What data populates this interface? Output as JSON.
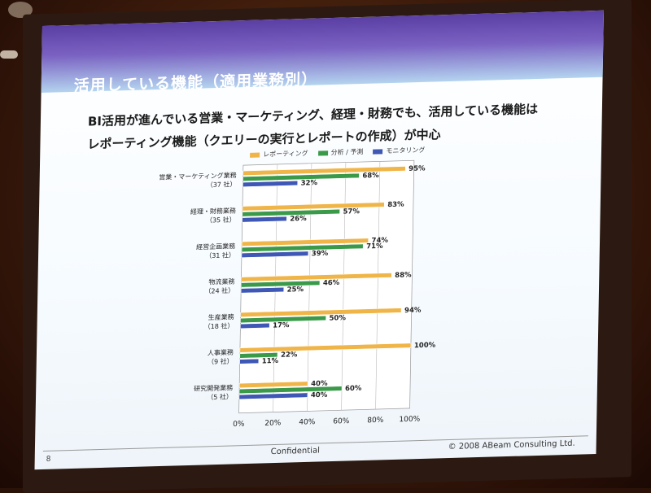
{
  "slide": {
    "title": "活用している機能（適用業務別）",
    "headline_line1": "BI活用が進んでいる営業・マーケティング、経理・財務でも、活用している機能は",
    "headline_line2": "レポーティング機能（クエリーの実行とレポートの作成）が中心",
    "page_number": "8",
    "footer_center": "Confidential",
    "footer_right": "© 2008 ABeam Consulting Ltd."
  },
  "chart_data": {
    "type": "bar",
    "orientation": "horizontal",
    "categories": [
      {
        "name": "営業・マーケティング業務",
        "count": "（37 社）"
      },
      {
        "name": "経理・財務業務",
        "count": "（35 社）"
      },
      {
        "name": "経営企画業務",
        "count": "（31 社）"
      },
      {
        "name": "物流業務",
        "count": "（24 社）"
      },
      {
        "name": "生産業務",
        "count": "（18 社）"
      },
      {
        "name": "人事業務",
        "count": "（9 社）"
      },
      {
        "name": "研究開発業務",
        "count": "（5 社）"
      }
    ],
    "series": [
      {
        "name": "レポーティング",
        "color": "#f0b548",
        "values": [
          95,
          83,
          74,
          88,
          94,
          100,
          40
        ]
      },
      {
        "name": "分析 / 予測",
        "color": "#3a9a4a",
        "values": [
          68,
          57,
          71,
          46,
          50,
          22,
          60
        ]
      },
      {
        "name": "モニタリング",
        "color": "#3f58b5",
        "values": [
          32,
          26,
          39,
          25,
          17,
          11,
          40
        ]
      }
    ],
    "value_suffix": "%",
    "xlim": [
      0,
      100
    ],
    "xticks": [
      "0%",
      "20%",
      "40%",
      "60%",
      "80%",
      "100%"
    ],
    "legend_position": "top",
    "grid": true
  }
}
